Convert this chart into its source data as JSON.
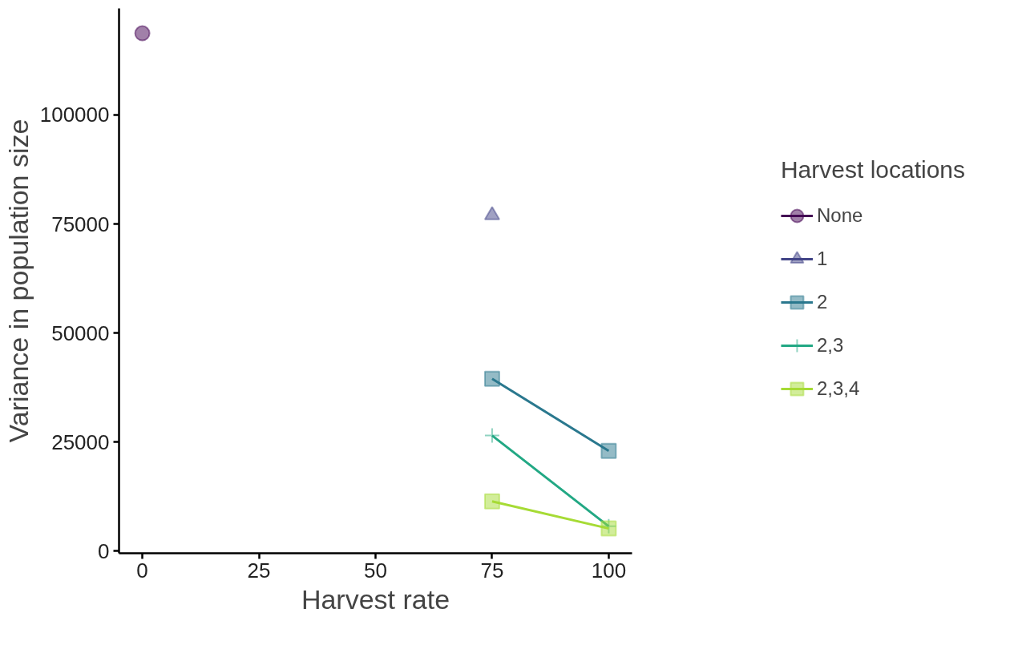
{
  "chart_data": {
    "type": "line",
    "xlabel": "Harvest rate",
    "ylabel": "Variance in population size",
    "legend_title": "Harvest locations",
    "legend": "right",
    "grid": false,
    "xlim": [
      -5,
      105
    ],
    "xticks": [
      0,
      25,
      50,
      75,
      100
    ],
    "ylim": [
      -475,
      124400
    ],
    "yticks": [
      0,
      25000,
      50000,
      75000,
      100000
    ],
    "series": [
      {
        "name": "None",
        "color": "#440154",
        "marker": "circle",
        "x": [
          0
        ],
        "values": [
          118700
        ]
      },
      {
        "name": "1",
        "color": "#414487",
        "marker": "triangle",
        "x": [
          75
        ],
        "values": [
          77000
        ]
      },
      {
        "name": "2",
        "color": "#2a788e",
        "marker": "square",
        "x": [
          75,
          100
        ],
        "values": [
          39500,
          23000
        ]
      },
      {
        "name": "2,3",
        "color": "#22a884",
        "marker": "cross",
        "x": [
          75,
          100
        ],
        "values": [
          26500,
          5700
        ]
      },
      {
        "name": "2,3,4",
        "color": "#a6db35",
        "marker": "square",
        "x": [
          75,
          100
        ],
        "values": [
          11400,
          5200
        ]
      }
    ]
  }
}
